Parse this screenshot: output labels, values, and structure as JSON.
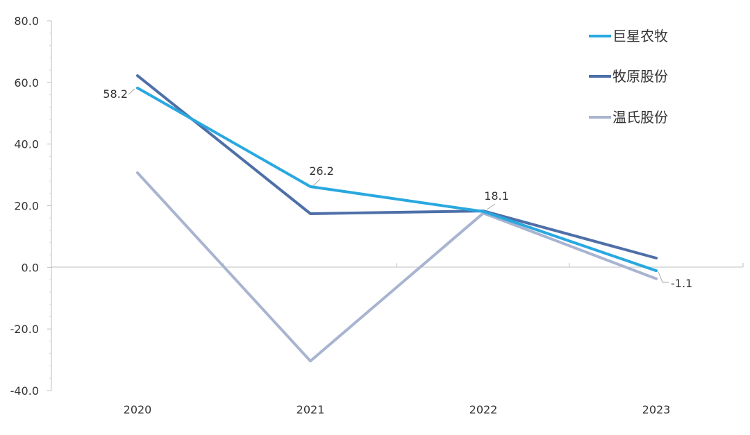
{
  "chart_data": {
    "type": "line",
    "categories": [
      "2020",
      "2021",
      "2022",
      "2023"
    ],
    "ylim": [
      -40,
      80
    ],
    "y_ticks": [
      "80.0",
      "60.0",
      "40.0",
      "20.0",
      "0.0",
      "-20.0",
      "-40.0"
    ],
    "grid": false,
    "legend_position": "top-right",
    "series": [
      {
        "name": "巨星农牧",
        "color": "#29A8E0",
        "values": [
          58.2,
          26.2,
          18.1,
          -1.1
        ],
        "labels": [
          "58.2",
          "26.2",
          "18.1",
          "-1.1"
        ]
      },
      {
        "name": "牧原股份",
        "color": "#4E6FA8",
        "values": [
          62.2,
          17.4,
          18.3,
          3.0
        ]
      },
      {
        "name": "温氏股份",
        "color": "#A8B4D0",
        "values": [
          30.7,
          -30.4,
          17.6,
          -3.7
        ]
      }
    ]
  }
}
